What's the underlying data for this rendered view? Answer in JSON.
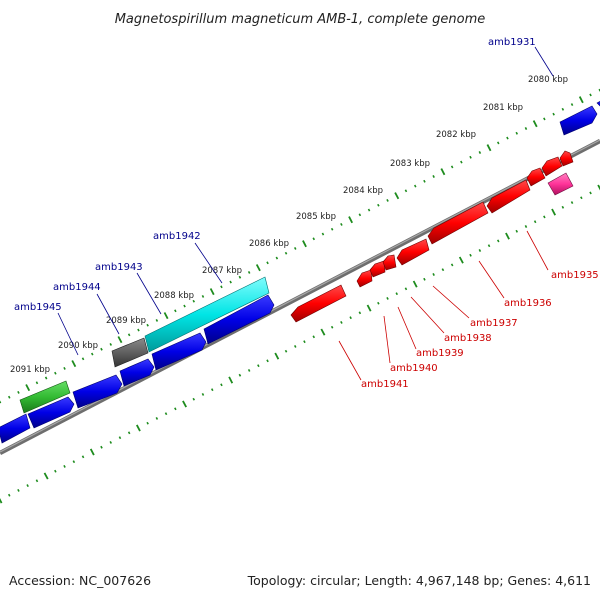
{
  "title": "Magnetospirillum magneticum AMB-1, complete genome",
  "footer": {
    "accession": "Accession: NC_007626",
    "topology": "Topology: circular; Length: 4,967,148 bp; Genes: 4,611"
  },
  "colors": {
    "backbone": "#808080",
    "ruler": "#1e8c1e",
    "forward_label": "#00008b",
    "reverse_label": "#cc0000",
    "gene_blue": "#0000e6",
    "gene_red": "#ff0000",
    "gene_cyan": "#00e5e5",
    "gene_green": "#33bb33",
    "gene_gray": "#606060",
    "gene_pink": "#ff3399"
  },
  "kbp_labels": [
    "2080 kbp",
    "2081 kbp",
    "2082 kbp",
    "2083 kbp",
    "2084 kbp",
    "2085 kbp",
    "2086 kbp",
    "2087 kbp",
    "2088 kbp",
    "2089 kbp",
    "2090 kbp",
    "2091 kbp"
  ],
  "forward_labels": [
    "amb1931",
    "amb1942",
    "amb1943",
    "amb1944",
    "amb1945"
  ],
  "reverse_labels": [
    "amb1935",
    "amb1936",
    "amb1937",
    "amb1938",
    "amb1939",
    "amb1940",
    "amb1941"
  ]
}
